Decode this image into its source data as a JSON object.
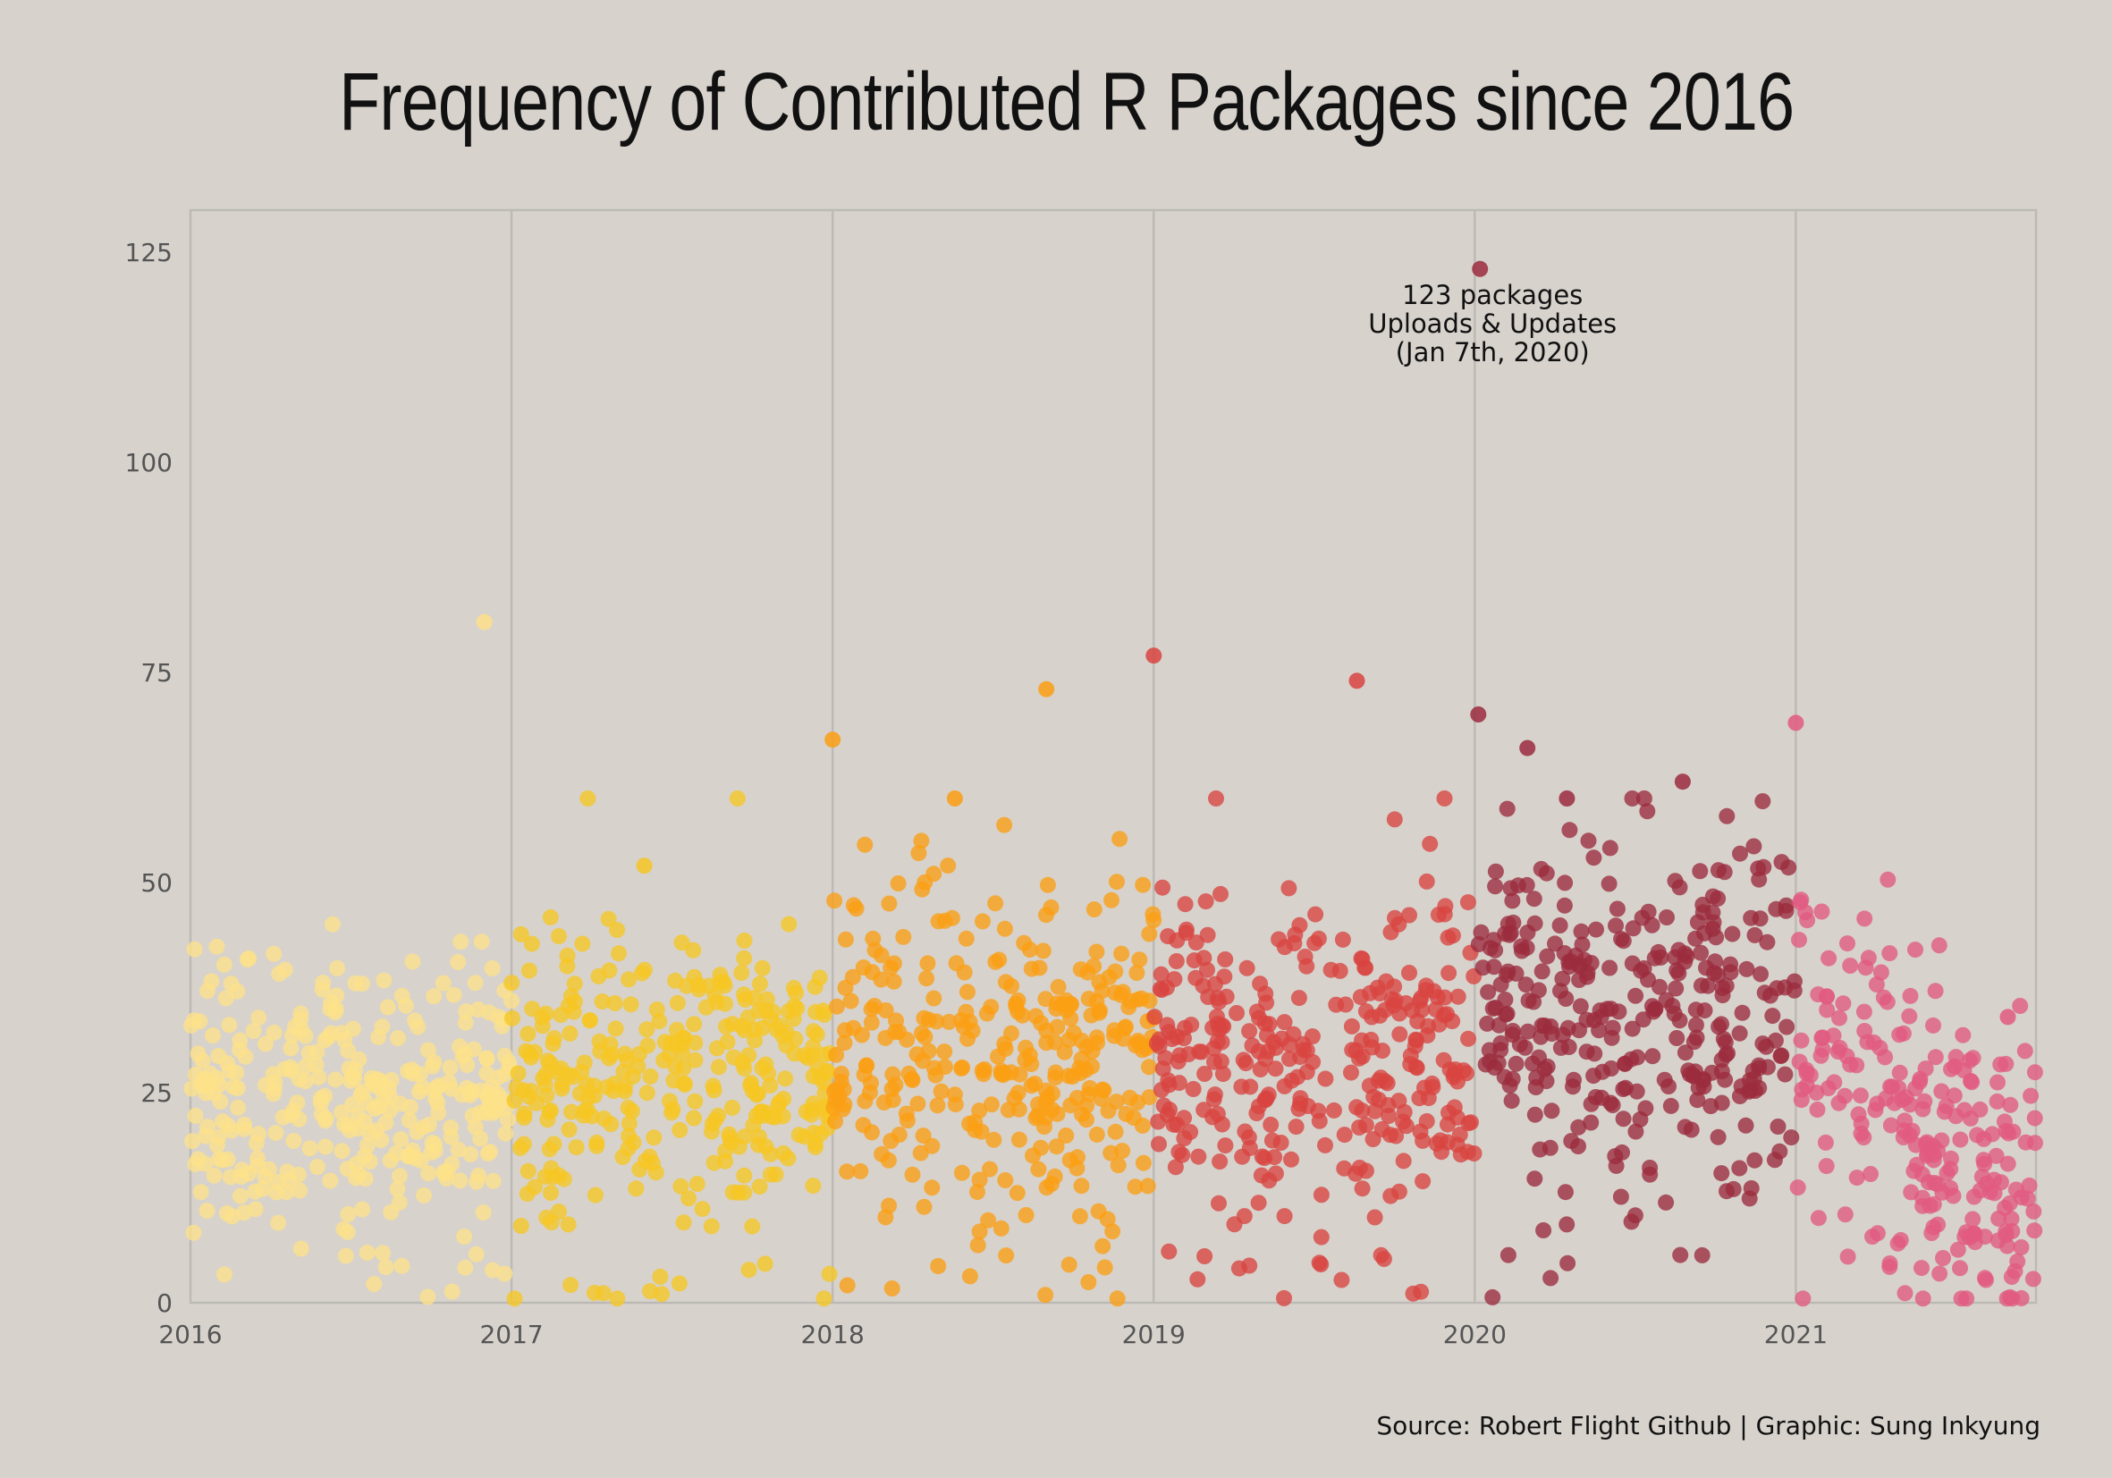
{
  "chart_data": {
    "type": "scatter",
    "title": "Frequency of Contributed R Packages since 2016",
    "source": "Source: Robert Flight Github | Graphic: Sung Inkyung",
    "xlabel": "",
    "ylabel": "",
    "x_range": [
      "2016-01-01",
      "2021-10-01"
    ],
    "ylim": [
      0,
      130
    ],
    "x_ticks": [
      "2016",
      "2017",
      "2018",
      "2019",
      "2020",
      "2021"
    ],
    "y_ticks": [
      "0",
      "25",
      "50",
      "75",
      "100",
      "125"
    ],
    "grid": "vertical lines at year boundaries",
    "legend": "none",
    "series": [
      {
        "year": 2016,
        "color": "#fde18a",
        "center": 24,
        "spread": 8,
        "count": 340
      },
      {
        "year": 2017,
        "color": "#f6c623",
        "center": 28,
        "spread": 9,
        "count": 330
      },
      {
        "year": 2018,
        "color": "#fb9f13",
        "center": 30,
        "spread": 10,
        "count": 330
      },
      {
        "year": 2019,
        "color": "#d84440",
        "center": 29,
        "spread": 10,
        "count": 330
      },
      {
        "year": 2020,
        "color": "#9b2c3e",
        "center": 34,
        "spread": 11,
        "count": 330
      },
      {
        "year": 2021,
        "color": "#e25a80",
        "center": 22,
        "spread": 10,
        "count": 230
      }
    ],
    "notable_points": [
      {
        "date": "2020-01-07",
        "value": 123,
        "year": 2020
      },
      {
        "date": "2016-12-01",
        "value": 81,
        "year": 2016
      },
      {
        "date": "2019-01-01",
        "value": 77,
        "year": 2019
      },
      {
        "date": "2018-09-01",
        "value": 73,
        "year": 2018
      },
      {
        "date": "2019-08-20",
        "value": 74,
        "year": 2019
      },
      {
        "date": "2020-01-05",
        "value": 70,
        "year": 2020
      },
      {
        "date": "2021-01-01",
        "value": 69,
        "year": 2021
      },
      {
        "date": "2018-01-01",
        "value": 67,
        "year": 2018
      },
      {
        "date": "2020-03-01",
        "value": 66,
        "year": 2020
      },
      {
        "date": "2020-08-25",
        "value": 62,
        "year": 2020
      },
      {
        "date": "2018-05-20",
        "value": 60,
        "year": 2018
      },
      {
        "date": "2020-04-15",
        "value": 60,
        "year": 2020
      },
      {
        "date": "2017-06-01",
        "value": 52,
        "year": 2017
      },
      {
        "date": "2021-08-30",
        "value": 34,
        "year": 2021
      }
    ],
    "annotation": {
      "date": "2020-01-07",
      "value": 123,
      "lines": [
        "123 packages",
        "Uploads & Updates",
        "(Jan 7th, 2020)"
      ]
    }
  }
}
